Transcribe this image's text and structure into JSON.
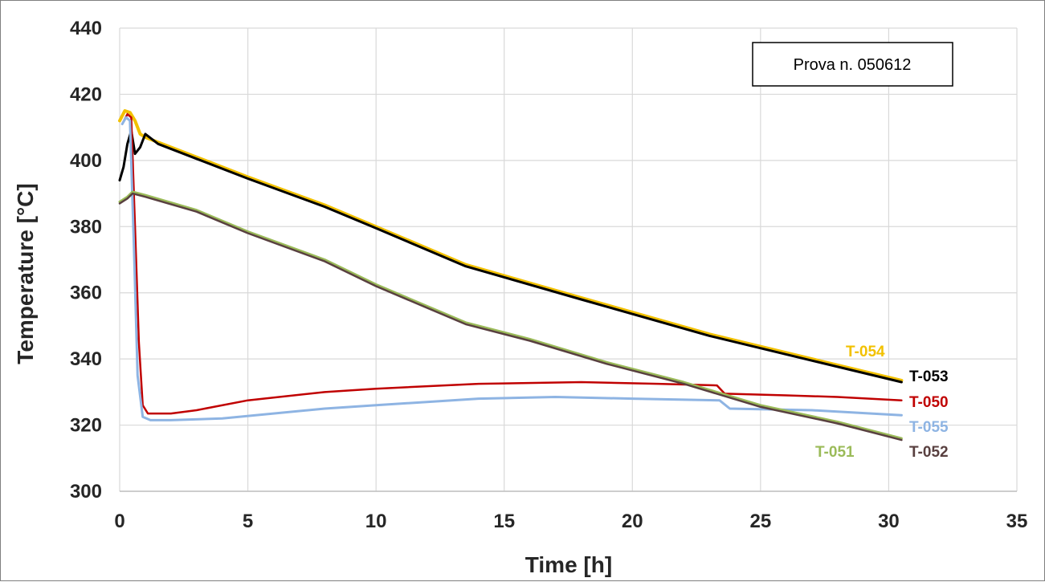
{
  "chart_data": {
    "type": "line",
    "xlabel": "Time [h]",
    "ylabel": "Temperature [°C]",
    "xlim": [
      0,
      35
    ],
    "ylim": [
      300,
      440
    ],
    "x_ticks": [
      0,
      5,
      10,
      15,
      20,
      25,
      30,
      35
    ],
    "y_ticks": [
      300,
      320,
      340,
      360,
      380,
      400,
      420,
      440
    ],
    "grid": true,
    "annotation": "Prova n. 050612",
    "series": [
      {
        "name": "T-054",
        "color": "#f2c100",
        "points": [
          [
            0,
            412
          ],
          [
            0.2,
            415
          ],
          [
            0.4,
            414.5
          ],
          [
            0.6,
            412
          ],
          [
            0.8,
            408
          ],
          [
            1.0,
            407
          ],
          [
            1.5,
            405.5
          ],
          [
            3,
            401
          ],
          [
            5,
            395
          ],
          [
            8,
            386.5
          ],
          [
            10,
            380
          ],
          [
            13.5,
            368.5
          ],
          [
            18,
            358.5
          ],
          [
            23,
            347.5
          ],
          [
            27,
            340
          ],
          [
            30.5,
            333.5
          ]
        ]
      },
      {
        "name": "T-053",
        "color": "#000000",
        "points": [
          [
            0,
            394
          ],
          [
            0.15,
            398
          ],
          [
            0.3,
            405
          ],
          [
            0.45,
            409
          ],
          [
            0.6,
            402
          ],
          [
            0.8,
            404
          ],
          [
            1.0,
            408
          ],
          [
            1.5,
            405
          ],
          [
            3,
            400.5
          ],
          [
            5,
            394.5
          ],
          [
            8,
            386
          ],
          [
            10,
            379.5
          ],
          [
            13.5,
            368
          ],
          [
            18,
            358
          ],
          [
            23,
            347
          ],
          [
            27,
            339.5
          ],
          [
            30.5,
            333
          ]
        ]
      },
      {
        "name": "T-050",
        "color": "#c00000",
        "points": [
          [
            0.1,
            411
          ],
          [
            0.3,
            414
          ],
          [
            0.45,
            413
          ],
          [
            0.6,
            380
          ],
          [
            0.75,
            345
          ],
          [
            0.9,
            326
          ],
          [
            1.1,
            323.5
          ],
          [
            2,
            323.5
          ],
          [
            3,
            324.5
          ],
          [
            5,
            327.5
          ],
          [
            8,
            330
          ],
          [
            10,
            331
          ],
          [
            14,
            332.5
          ],
          [
            18,
            333
          ],
          [
            21,
            332.5
          ],
          [
            23.3,
            332
          ],
          [
            23.6,
            329.5
          ],
          [
            26,
            329
          ],
          [
            28,
            328.5
          ],
          [
            30.5,
            327.5
          ]
        ]
      },
      {
        "name": "T-055",
        "color": "#8eb4e3",
        "points": [
          [
            0.1,
            411
          ],
          [
            0.25,
            413
          ],
          [
            0.4,
            412
          ],
          [
            0.55,
            375
          ],
          [
            0.7,
            335
          ],
          [
            0.9,
            322.5
          ],
          [
            1.2,
            321.5
          ],
          [
            2,
            321.5
          ],
          [
            4,
            322
          ],
          [
            8,
            325
          ],
          [
            10,
            326
          ],
          [
            14,
            328
          ],
          [
            17,
            328.5
          ],
          [
            20,
            328
          ],
          [
            23.4,
            327.5
          ],
          [
            23.8,
            325
          ],
          [
            27,
            324.5
          ],
          [
            30.5,
            323
          ]
        ]
      },
      {
        "name": "T-051",
        "color": "#9bbb59",
        "points": [
          [
            0,
            387.5
          ],
          [
            0.3,
            389
          ],
          [
            0.5,
            390.5
          ],
          [
            1,
            389.5
          ],
          [
            3,
            385
          ],
          [
            5,
            378.5
          ],
          [
            8,
            370
          ],
          [
            10,
            362.5
          ],
          [
            13.5,
            351
          ],
          [
            16,
            346
          ],
          [
            19,
            339
          ],
          [
            22,
            333
          ],
          [
            25,
            326
          ],
          [
            28,
            321
          ],
          [
            30.5,
            316
          ]
        ]
      },
      {
        "name": "T-052",
        "color": "#594040",
        "points": [
          [
            0,
            387
          ],
          [
            0.3,
            388.5
          ],
          [
            0.5,
            390
          ],
          [
            1,
            389
          ],
          [
            3,
            384.5
          ],
          [
            5,
            378
          ],
          [
            8,
            369.5
          ],
          [
            10,
            362
          ],
          [
            13.5,
            350.5
          ],
          [
            16,
            345.5
          ],
          [
            19,
            338.5
          ],
          [
            22,
            332.5
          ],
          [
            25,
            325.5
          ],
          [
            28,
            320.5
          ],
          [
            30.5,
            315.5
          ]
        ]
      }
    ]
  }
}
